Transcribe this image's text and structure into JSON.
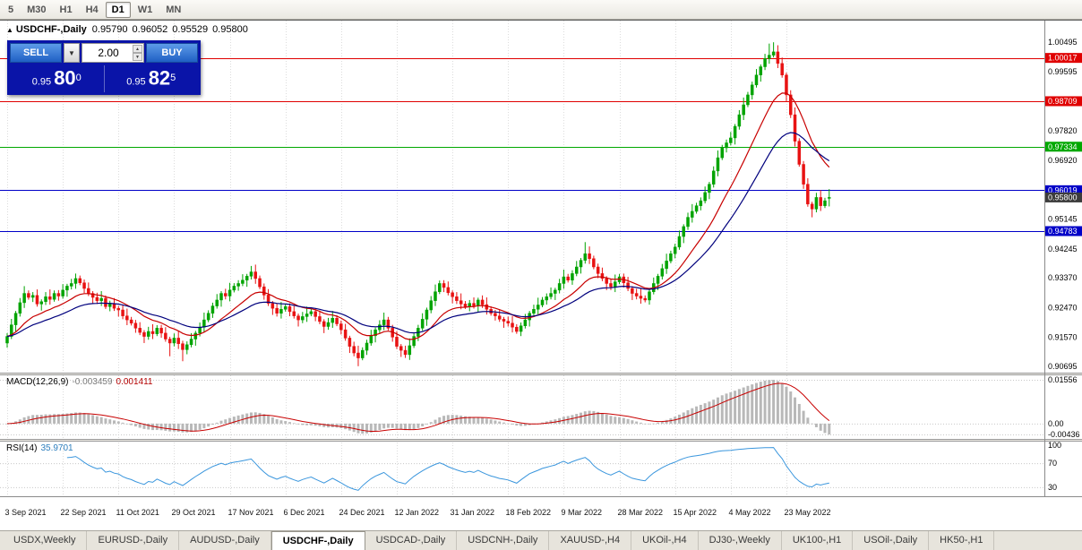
{
  "icons": {
    "title_triangle": "▲",
    "dropdown_arrow": "▼",
    "spin_up": "▲",
    "spin_down": "▼"
  },
  "toolbar": {
    "periods": [
      "5",
      "M30",
      "H1",
      "H4",
      "D1",
      "W1",
      "MN"
    ],
    "active_period": "D1"
  },
  "chart_window": {
    "title_symbol": "USDCHF-,Daily",
    "ohlc": {
      "open": "0.95790",
      "high": "0.96052",
      "low": "0.95529",
      "close": "0.95800"
    }
  },
  "trade_panel": {
    "sell_label": "SELL",
    "buy_label": "BUY",
    "volume": "2.00",
    "sell_price_prefix": "0.95",
    "sell_price_big": "80",
    "sell_price_sup": "0",
    "buy_price_prefix": "0.95",
    "buy_price_big": "82",
    "buy_price_sup": "5"
  },
  "price_axis": {
    "ticks": [
      {
        "label": "1.00495",
        "value": 1.00495
      },
      {
        "label": "0.99595",
        "value": 0.99595
      },
      {
        "label": "0.97820",
        "value": 0.9782
      },
      {
        "label": "0.96920",
        "value": 0.9692
      },
      {
        "label": "0.95145",
        "value": 0.95145
      },
      {
        "label": "0.94245",
        "value": 0.94245
      },
      {
        "label": "0.93370",
        "value": 0.9337
      },
      {
        "label": "0.92470",
        "value": 0.9247
      },
      {
        "label": "0.91570",
        "value": 0.9157
      },
      {
        "label": "0.90695",
        "value": 0.90695
      }
    ],
    "lines": [
      {
        "label": "1.00017",
        "value": 1.00017,
        "color": "#E00000"
      },
      {
        "label": "0.98709",
        "value": 0.98709,
        "color": "#E00000"
      },
      {
        "label": "0.97334",
        "value": 0.97334,
        "color": "#00A800"
      },
      {
        "label": "0.96019",
        "value": 0.96019,
        "color": "#0000C8"
      },
      {
        "label": "0.94783",
        "value": 0.94783,
        "color": "#0000C8"
      }
    ],
    "current": {
      "label": "0.95800",
      "value": 0.958,
      "color": "#3C3C3C"
    }
  },
  "macd_panel": {
    "name": "MACD(12,26,9)",
    "params": [
      12,
      26,
      9
    ],
    "main_value": "-0.003459",
    "signal_value": "0.001411",
    "axis_labels": [
      "0.01556",
      "0.00",
      "-0.00436"
    ],
    "colors": {
      "histogram": "#B8B8B8",
      "signal": "#C80000"
    }
  },
  "rsi_panel": {
    "name": "RSI(14)",
    "period": 14,
    "value": "35.9701",
    "axis": [
      {
        "label": "100",
        "value": 100
      },
      {
        "label": "70",
        "value": 70
      },
      {
        "label": "30",
        "value": 30
      }
    ],
    "levels": [
      70,
      30
    ],
    "color": "#3A96DD"
  },
  "date_axis": [
    "3 Sep 2021",
    "22 Sep 2021",
    "11 Oct 2021",
    "29 Oct 2021",
    "17 Nov 2021",
    "6 Dec 2021",
    "24 Dec 2021",
    "12 Jan 2022",
    "31 Jan 2022",
    "18 Feb 2022",
    "9 Mar 2022",
    "28 Mar 2022",
    "15 Apr 2022",
    "4 May 2022",
    "23 May 2022"
  ],
  "tabs": {
    "items": [
      "USDX,Weekly",
      "EURUSD-,Daily",
      "AUDUSD-,Daily",
      "USDCHF-,Daily",
      "USDCAD-,Daily",
      "USDCNH-,Daily",
      "XAUUSD-,H4",
      "UKOil-,H4",
      "DJ30-,Weekly",
      "UK100-,H1",
      "USOil-,Daily",
      "HK50-,H1"
    ],
    "active": "USDCHF-,Daily"
  },
  "chart_data": {
    "type": "candlestick",
    "symbol": "USDCHF",
    "period": "Daily",
    "up_color": "#00A300",
    "down_color": "#E81212",
    "ma_fast_color": "#C80000",
    "ma_slow_color": "#00007D",
    "ma_fast_period": 14,
    "ma_slow_period": 28,
    "first_open": 0.914,
    "closes": [
      0.916,
      0.9195,
      0.923,
      0.9262,
      0.929,
      0.9278,
      0.9284,
      0.9258,
      0.9265,
      0.928,
      0.9272,
      0.929,
      0.9282,
      0.93,
      0.9312,
      0.932,
      0.9335,
      0.9322,
      0.9305,
      0.929,
      0.9278,
      0.9268,
      0.9275,
      0.925,
      0.9258,
      0.9245,
      0.924,
      0.9222,
      0.921,
      0.92,
      0.9185,
      0.9172,
      0.916,
      0.9175,
      0.9168,
      0.9185,
      0.917,
      0.9152,
      0.914,
      0.9155,
      0.9138,
      0.912,
      0.9135,
      0.9152,
      0.917,
      0.9188,
      0.921,
      0.923,
      0.9252,
      0.927,
      0.929,
      0.9282,
      0.93,
      0.9312,
      0.932,
      0.933,
      0.9342,
      0.9355,
      0.9335,
      0.931,
      0.9285,
      0.926,
      0.9245,
      0.923,
      0.9242,
      0.925,
      0.9235,
      0.9222,
      0.921,
      0.922,
      0.9228,
      0.9235,
      0.922,
      0.9205,
      0.919,
      0.9202,
      0.9215,
      0.9198,
      0.918,
      0.9155,
      0.913,
      0.911,
      0.9095,
      0.9118,
      0.914,
      0.9162,
      0.918,
      0.9195,
      0.921,
      0.9185,
      0.9158,
      0.913,
      0.9118,
      0.9105,
      0.9132,
      0.916,
      0.9185,
      0.9212,
      0.924,
      0.9268,
      0.9295,
      0.932,
      0.9308,
      0.9292,
      0.928,
      0.9268,
      0.9258,
      0.925,
      0.926,
      0.9252,
      0.927,
      0.9256,
      0.9242,
      0.923,
      0.9222,
      0.9212,
      0.9206,
      0.92,
      0.9188,
      0.9175,
      0.9192,
      0.921,
      0.923,
      0.9242,
      0.9255,
      0.927,
      0.928,
      0.929,
      0.93,
      0.932,
      0.934,
      0.933,
      0.935,
      0.937,
      0.939,
      0.941,
      0.9395,
      0.937,
      0.935,
      0.9335,
      0.932,
      0.931,
      0.9325,
      0.934,
      0.9322,
      0.9305,
      0.929,
      0.9282,
      0.9275,
      0.927,
      0.9295,
      0.932,
      0.9342,
      0.9365,
      0.9388,
      0.941,
      0.943,
      0.9462,
      0.9492,
      0.952,
      0.9538,
      0.9555,
      0.957,
      0.9595,
      0.962,
      0.966,
      0.97,
      0.973,
      0.9745,
      0.976,
      0.9795,
      0.983,
      0.986,
      0.989,
      0.992,
      0.995,
      0.9975,
      1.0,
      1.001,
      1.002,
      0.9985,
      0.995,
      0.989,
      0.983,
      0.975,
      0.968,
      0.962,
      0.956,
      0.9545,
      0.958,
      0.9555,
      0.957,
      0.958
    ],
    "wick_up": [
      0.001,
      0.0018,
      0.0007,
      0.0014,
      0.0022,
      0.0009
    ],
    "wick_down": [
      0.0014,
      0.0008,
      0.002,
      0.001,
      0.0016,
      0.0007
    ],
    "overrides": {
      "16": {
        "h": 0.935
      },
      "38": {
        "l": 0.91
      },
      "41": {
        "l": 0.9085
      },
      "57": {
        "h": 0.9373
      },
      "82": {
        "l": 0.907
      },
      "93": {
        "l": 0.9095
      },
      "135": {
        "h": 0.9445
      },
      "178": {
        "h": 1.0045
      },
      "179": {
        "h": 1.0049
      },
      "180": {
        "h": 1.004
      },
      "188": {
        "l": 0.952
      },
      "192": {
        "o": 0.9579,
        "h": 0.96052,
        "l": 0.95529
      }
    }
  }
}
